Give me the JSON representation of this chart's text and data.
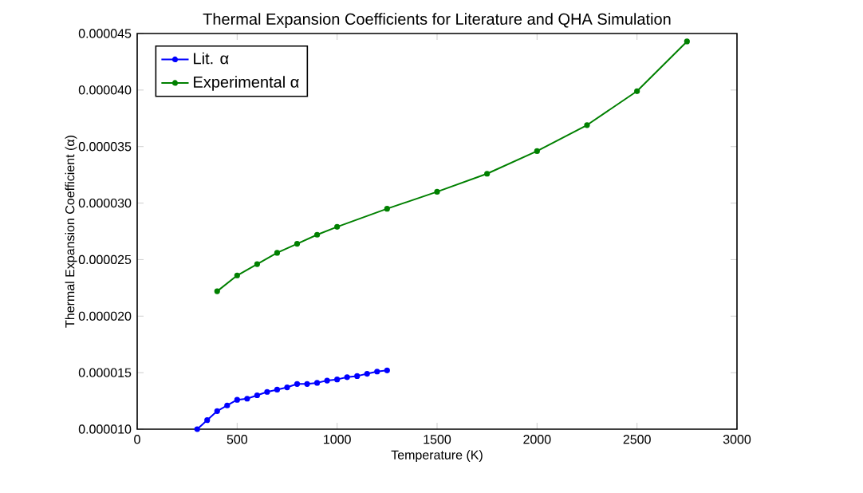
{
  "chart_data": {
    "type": "line",
    "title": "Thermal Expansion Coefficients for Literature and QHA Simulation",
    "xlabel": "Temperature (K)",
    "ylabel": "Thermal Expansion Coefficient (α)",
    "series": [
      {
        "name": "Lit. α",
        "color": "#0000ff",
        "x": [
          300,
          350,
          400,
          450,
          500,
          550,
          600,
          650,
          700,
          750,
          800,
          850,
          900,
          950,
          1000,
          1050,
          1100,
          1150,
          1200,
          1250
        ],
        "values": [
          1e-05,
          1.08e-05,
          1.16e-05,
          1.21e-05,
          1.26e-05,
          1.27e-05,
          1.3e-05,
          1.33e-05,
          1.35e-05,
          1.37e-05,
          1.4e-05,
          1.4e-05,
          1.41e-05,
          1.43e-05,
          1.44e-05,
          1.46e-05,
          1.47e-05,
          1.49e-05,
          1.51e-05,
          1.52e-05
        ]
      },
      {
        "name": "Experimental α",
        "color": "#008000",
        "x": [
          400,
          500,
          600,
          700,
          800,
          900,
          1000,
          1250,
          1500,
          1750,
          2000,
          2250,
          2500,
          2750
        ],
        "values": [
          2.22e-05,
          2.36e-05,
          2.46e-05,
          2.56e-05,
          2.64e-05,
          2.72e-05,
          2.79e-05,
          2.95e-05,
          3.1e-05,
          3.26e-05,
          3.46e-05,
          3.69e-05,
          3.99e-05,
          4.43e-05
        ]
      }
    ],
    "xlim": [
      0,
      3000
    ],
    "xticks": [
      0,
      500,
      1000,
      1500,
      2000,
      2500,
      3000
    ],
    "ylim": [
      1e-05,
      4.5e-05
    ],
    "yticks": [
      {
        "value": 1e-05,
        "label": "0.000010"
      },
      {
        "value": 1.5e-05,
        "label": "0.000015"
      },
      {
        "value": 2e-05,
        "label": "0.000020"
      },
      {
        "value": 2.5e-05,
        "label": "0.000025"
      },
      {
        "value": 3e-05,
        "label": "0.000030"
      },
      {
        "value": 3.5e-05,
        "label": "0.000035"
      },
      {
        "value": 4e-05,
        "label": "0.000040"
      },
      {
        "value": 4.5e-05,
        "label": "0.000045"
      }
    ],
    "legend": "top left",
    "marker": "circle",
    "grid": false
  }
}
